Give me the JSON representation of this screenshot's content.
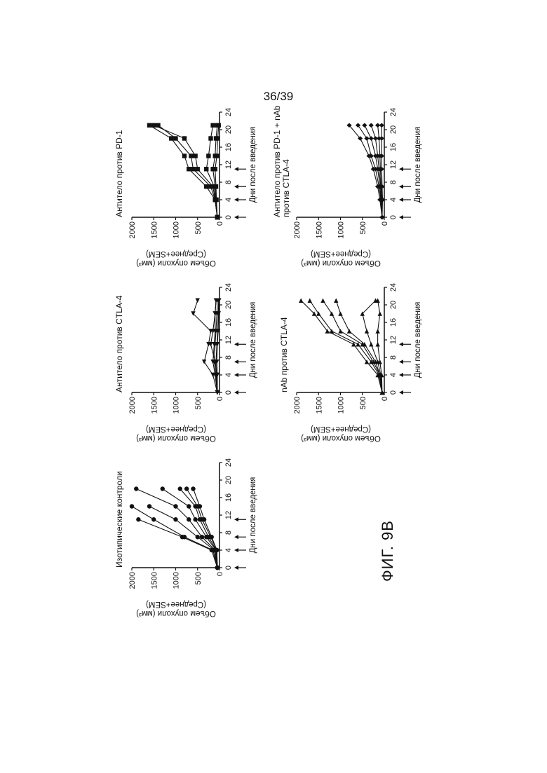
{
  "page_number": "36/39",
  "figure_label": "ФИГ. 9B",
  "chart_data": [
    {
      "type": "line",
      "title": "Изотипические контроли",
      "ylabel": "Объем опухоли (мм³) (Среднее+SEM)",
      "xlabel": "Дни после введения",
      "x_ticks": [
        0,
        4,
        8,
        12,
        16,
        20,
        24
      ],
      "y_ticks": [
        0,
        500,
        1000,
        1500,
        2000
      ],
      "xlim": [
        0,
        24
      ],
      "ylim": [
        0,
        2000
      ],
      "dosing_days": [
        0,
        4,
        7,
        11
      ],
      "marker": "circle",
      "series": [
        {
          "x": [
            0,
            4,
            7,
            11
          ],
          "y": [
            50,
            180,
            850,
            1850
          ]
        },
        {
          "x": [
            0,
            4,
            7,
            11,
            14
          ],
          "y": [
            50,
            150,
            800,
            1500,
            2000
          ]
        },
        {
          "x": [
            0,
            4,
            7,
            11,
            14
          ],
          "y": [
            50,
            120,
            500,
            1000,
            1600
          ]
        },
        {
          "x": [
            0,
            4,
            7,
            11,
            14,
            18
          ],
          "y": [
            50,
            100,
            400,
            700,
            1000,
            1900
          ]
        },
        {
          "x": [
            0,
            4,
            7,
            11,
            14,
            18
          ],
          "y": [
            50,
            80,
            300,
            550,
            700,
            1300
          ]
        },
        {
          "x": [
            0,
            4,
            7,
            11,
            14,
            18
          ],
          "y": [
            50,
            70,
            250,
            450,
            550,
            900
          ]
        },
        {
          "x": [
            0,
            4,
            7,
            11,
            14,
            18
          ],
          "y": [
            50,
            60,
            200,
            400,
            500,
            750
          ]
        },
        {
          "x": [
            0,
            4,
            7,
            11,
            14,
            18
          ],
          "y": [
            50,
            60,
            180,
            350,
            450,
            600
          ]
        }
      ]
    },
    {
      "type": "line",
      "title": "Антитело против CTLA-4",
      "ylabel": "Объем опухоли (мм³) (Среднее+SEM)",
      "xlabel": "Дни после введения",
      "x_ticks": [
        0,
        4,
        8,
        12,
        16,
        20,
        24
      ],
      "y_ticks": [
        0,
        500,
        1000,
        1500,
        2000
      ],
      "xlim": [
        0,
        24
      ],
      "ylim": [
        0,
        2000
      ],
      "dosing_days": [
        0,
        4,
        7,
        11
      ],
      "marker": "triangle-left",
      "series": [
        {
          "x": [
            0,
            4,
            7,
            11,
            14,
            18,
            21
          ],
          "y": [
            50,
            150,
            350,
            250,
            200,
            600,
            500
          ]
        },
        {
          "x": [
            0,
            4,
            7,
            11,
            14,
            18,
            21
          ],
          "y": [
            50,
            100,
            150,
            120,
            100,
            100,
            80
          ]
        },
        {
          "x": [
            0,
            4,
            7,
            11,
            14,
            18,
            21
          ],
          "y": [
            50,
            80,
            120,
            100,
            80,
            60,
            50
          ]
        },
        {
          "x": [
            0,
            4,
            7,
            11,
            14,
            18,
            21
          ],
          "y": [
            50,
            60,
            100,
            200,
            150,
            100,
            80
          ]
        },
        {
          "x": [
            0,
            4,
            7,
            11,
            14,
            18,
            21
          ],
          "y": [
            50,
            70,
            80,
            60,
            40,
            30,
            20
          ]
        },
        {
          "x": [
            0,
            4,
            7,
            11,
            14,
            18,
            21
          ],
          "y": [
            50,
            50,
            60,
            50,
            30,
            20,
            10
          ]
        }
      ]
    },
    {
      "type": "line",
      "title": "Антитело против PD-1",
      "ylabel": "Объем опухоли (мм³) (Среднее+SEM)",
      "xlabel": "Дни после введения",
      "x_ticks": [
        0,
        4,
        8,
        12,
        16,
        20,
        24
      ],
      "y_ticks": [
        0,
        500,
        1000,
        1500,
        2000
      ],
      "xlim": [
        0,
        24
      ],
      "ylim": [
        0,
        2000
      ],
      "dosing_days": [
        0,
        4,
        7,
        11
      ],
      "marker": "square",
      "series": [
        {
          "x": [
            0,
            4,
            7,
            11,
            14,
            18,
            21
          ],
          "y": [
            50,
            100,
            300,
            700,
            800,
            1100,
            1600
          ]
        },
        {
          "x": [
            0,
            4,
            7,
            11,
            14,
            18,
            21
          ],
          "y": [
            50,
            100,
            200,
            600,
            650,
            1000,
            1400
          ]
        },
        {
          "x": [
            0,
            4,
            7,
            11,
            14,
            18,
            21
          ],
          "y": [
            50,
            100,
            150,
            500,
            550,
            800,
            1500
          ]
        },
        {
          "x": [
            0,
            4,
            7,
            11,
            14,
            18,
            21
          ],
          "y": [
            50,
            90,
            120,
            300,
            250,
            200,
            150
          ]
        },
        {
          "x": [
            0,
            4,
            7,
            11,
            14,
            18,
            21
          ],
          "y": [
            50,
            80,
            100,
            150,
            100,
            80,
            50
          ]
        },
        {
          "x": [
            0,
            4,
            7,
            11,
            14,
            18,
            21
          ],
          "y": [
            50,
            70,
            80,
            100,
            60,
            40,
            20
          ]
        }
      ]
    },
    {
      "type": "line",
      "title": "nAb против CTLA-4",
      "ylabel": "Объем опухоли (мм³) (Среднее+SEM)",
      "xlabel": "Дни после введения",
      "x_ticks": [
        0,
        4,
        8,
        12,
        16,
        20,
        24
      ],
      "y_ticks": [
        0,
        500,
        1000,
        1500,
        2000
      ],
      "xlim": [
        0,
        24
      ],
      "ylim": [
        0,
        2000
      ],
      "dosing_days": [
        0,
        4,
        7,
        11
      ],
      "marker": "triangle-right",
      "series": [
        {
          "x": [
            0,
            4,
            7,
            11,
            14,
            18,
            21
          ],
          "y": [
            50,
            150,
            400,
            700,
            1300,
            1600,
            1900
          ]
        },
        {
          "x": [
            0,
            4,
            7,
            11,
            14,
            18,
            21
          ],
          "y": [
            50,
            120,
            300,
            600,
            1200,
            1500,
            1700
          ]
        },
        {
          "x": [
            0,
            4,
            7,
            11,
            14,
            18,
            21
          ],
          "y": [
            50,
            100,
            250,
            500,
            1000,
            1200,
            1400
          ]
        },
        {
          "x": [
            0,
            4,
            7,
            11,
            14,
            18,
            21
          ],
          "y": [
            50,
            100,
            200,
            450,
            800,
            1000,
            1100
          ]
        },
        {
          "x": [
            0,
            4,
            7,
            11,
            14,
            18,
            21
          ],
          "y": [
            50,
            80,
            150,
            300,
            400,
            500,
            200
          ]
        },
        {
          "x": [
            0,
            4,
            7,
            11,
            14,
            18,
            21
          ],
          "y": [
            50,
            60,
            100,
            150,
            150,
            100,
            150
          ]
        }
      ]
    },
    {
      "type": "line",
      "title": "Антитело против PD-1 + nAb против CTLA-4",
      "ylabel": "Объем опухоли (мм³) (Среднее+SEM)",
      "xlabel": "Дни после введения",
      "x_ticks": [
        0,
        4,
        8,
        12,
        16,
        20,
        24
      ],
      "y_ticks": [
        0,
        500,
        1000,
        1500,
        2000
      ],
      "xlim": [
        0,
        24
      ],
      "ylim": [
        0,
        2000
      ],
      "dosing_days": [
        0,
        4,
        7,
        11
      ],
      "marker": "diamond",
      "series": [
        {
          "x": [
            0,
            4,
            7,
            11,
            14,
            18,
            21
          ],
          "y": [
            50,
            100,
            150,
            250,
            350,
            550,
            800
          ]
        },
        {
          "x": [
            0,
            4,
            7,
            11,
            14,
            18,
            21
          ],
          "y": [
            50,
            80,
            120,
            200,
            300,
            400,
            600
          ]
        },
        {
          "x": [
            0,
            4,
            7,
            11,
            14,
            18,
            21
          ],
          "y": [
            50,
            70,
            100,
            150,
            200,
            300,
            450
          ]
        },
        {
          "x": [
            0,
            4,
            7,
            11,
            14,
            18,
            21
          ],
          "y": [
            50,
            60,
            80,
            120,
            150,
            200,
            300
          ]
        },
        {
          "x": [
            0,
            4,
            7,
            11,
            14,
            18,
            21
          ],
          "y": [
            50,
            50,
            70,
            90,
            100,
            120,
            150
          ]
        },
        {
          "x": [
            0,
            4,
            7,
            11,
            14,
            18,
            21
          ],
          "y": [
            50,
            40,
            50,
            60,
            60,
            60,
            60
          ]
        }
      ]
    }
  ]
}
